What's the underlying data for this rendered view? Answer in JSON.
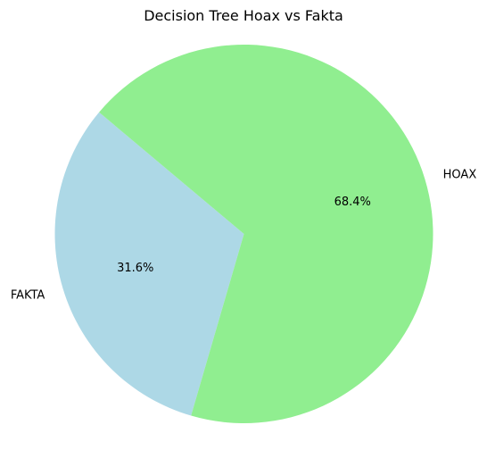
{
  "chart_data": {
    "type": "pie",
    "title": "Decision Tree Hoax vs Fakta",
    "categories": [
      "FAKTA",
      "HOAX"
    ],
    "values": [
      31.6,
      68.4
    ],
    "percent_labels": [
      "31.6%",
      "68.4%"
    ],
    "colors": [
      "#add8e6",
      "#90ee90"
    ],
    "start_angle_deg": 140,
    "direction": "counterclockwise"
  }
}
